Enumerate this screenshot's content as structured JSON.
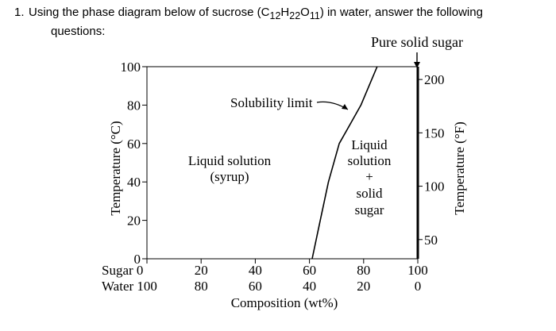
{
  "question": {
    "number": "1.",
    "line1_before": "Using the phase diagram below of sucrose (C",
    "sub1": "12",
    "mid1": "H",
    "sub2": "22",
    "mid2": "O",
    "sub3": "11",
    "line1_after": ") in water, answer the following",
    "line2": "questions:"
  },
  "chart_data": {
    "type": "line",
    "title": "",
    "xlabel": "Composition (wt%)",
    "ylabel": "Temperature (°C)",
    "y2label": "Temperature (°F)",
    "xlim": [
      0,
      100
    ],
    "ylim": [
      0,
      100
    ],
    "y2lim": [
      32,
      212
    ],
    "x_row1_label": "Sugar",
    "x_row2_label": "Water",
    "x_ticks_sugar": [
      "0",
      "20",
      "40",
      "60",
      "80",
      "100"
    ],
    "x_ticks_water": [
      "100",
      "80",
      "60",
      "40",
      "20",
      "0"
    ],
    "x_tick_values": [
      0,
      20,
      40,
      60,
      80,
      100
    ],
    "y_ticks": [
      0,
      20,
      40,
      60,
      80,
      100
    ],
    "y2_ticks": [
      50,
      100,
      150,
      200
    ],
    "grid": false,
    "series": [
      {
        "name": "Solubility limit",
        "x": [
          61,
          64,
          67,
          71,
          75,
          79,
          82,
          85
        ],
        "y": [
          0,
          20,
          40,
          60,
          70,
          80,
          90,
          100
        ]
      }
    ],
    "annotations": {
      "solubility_limit": "Solubility limit",
      "pure_solid": "Pure solid sugar",
      "liquid_region_line1": "Liquid solution",
      "liquid_region_line2": "(syrup)",
      "two_phase_line1": "Liquid",
      "two_phase_line2": "solution",
      "two_phase_line3": "+",
      "two_phase_line4": "solid",
      "two_phase_line5": "sugar"
    },
    "colors": {
      "ink": "#000000"
    }
  }
}
